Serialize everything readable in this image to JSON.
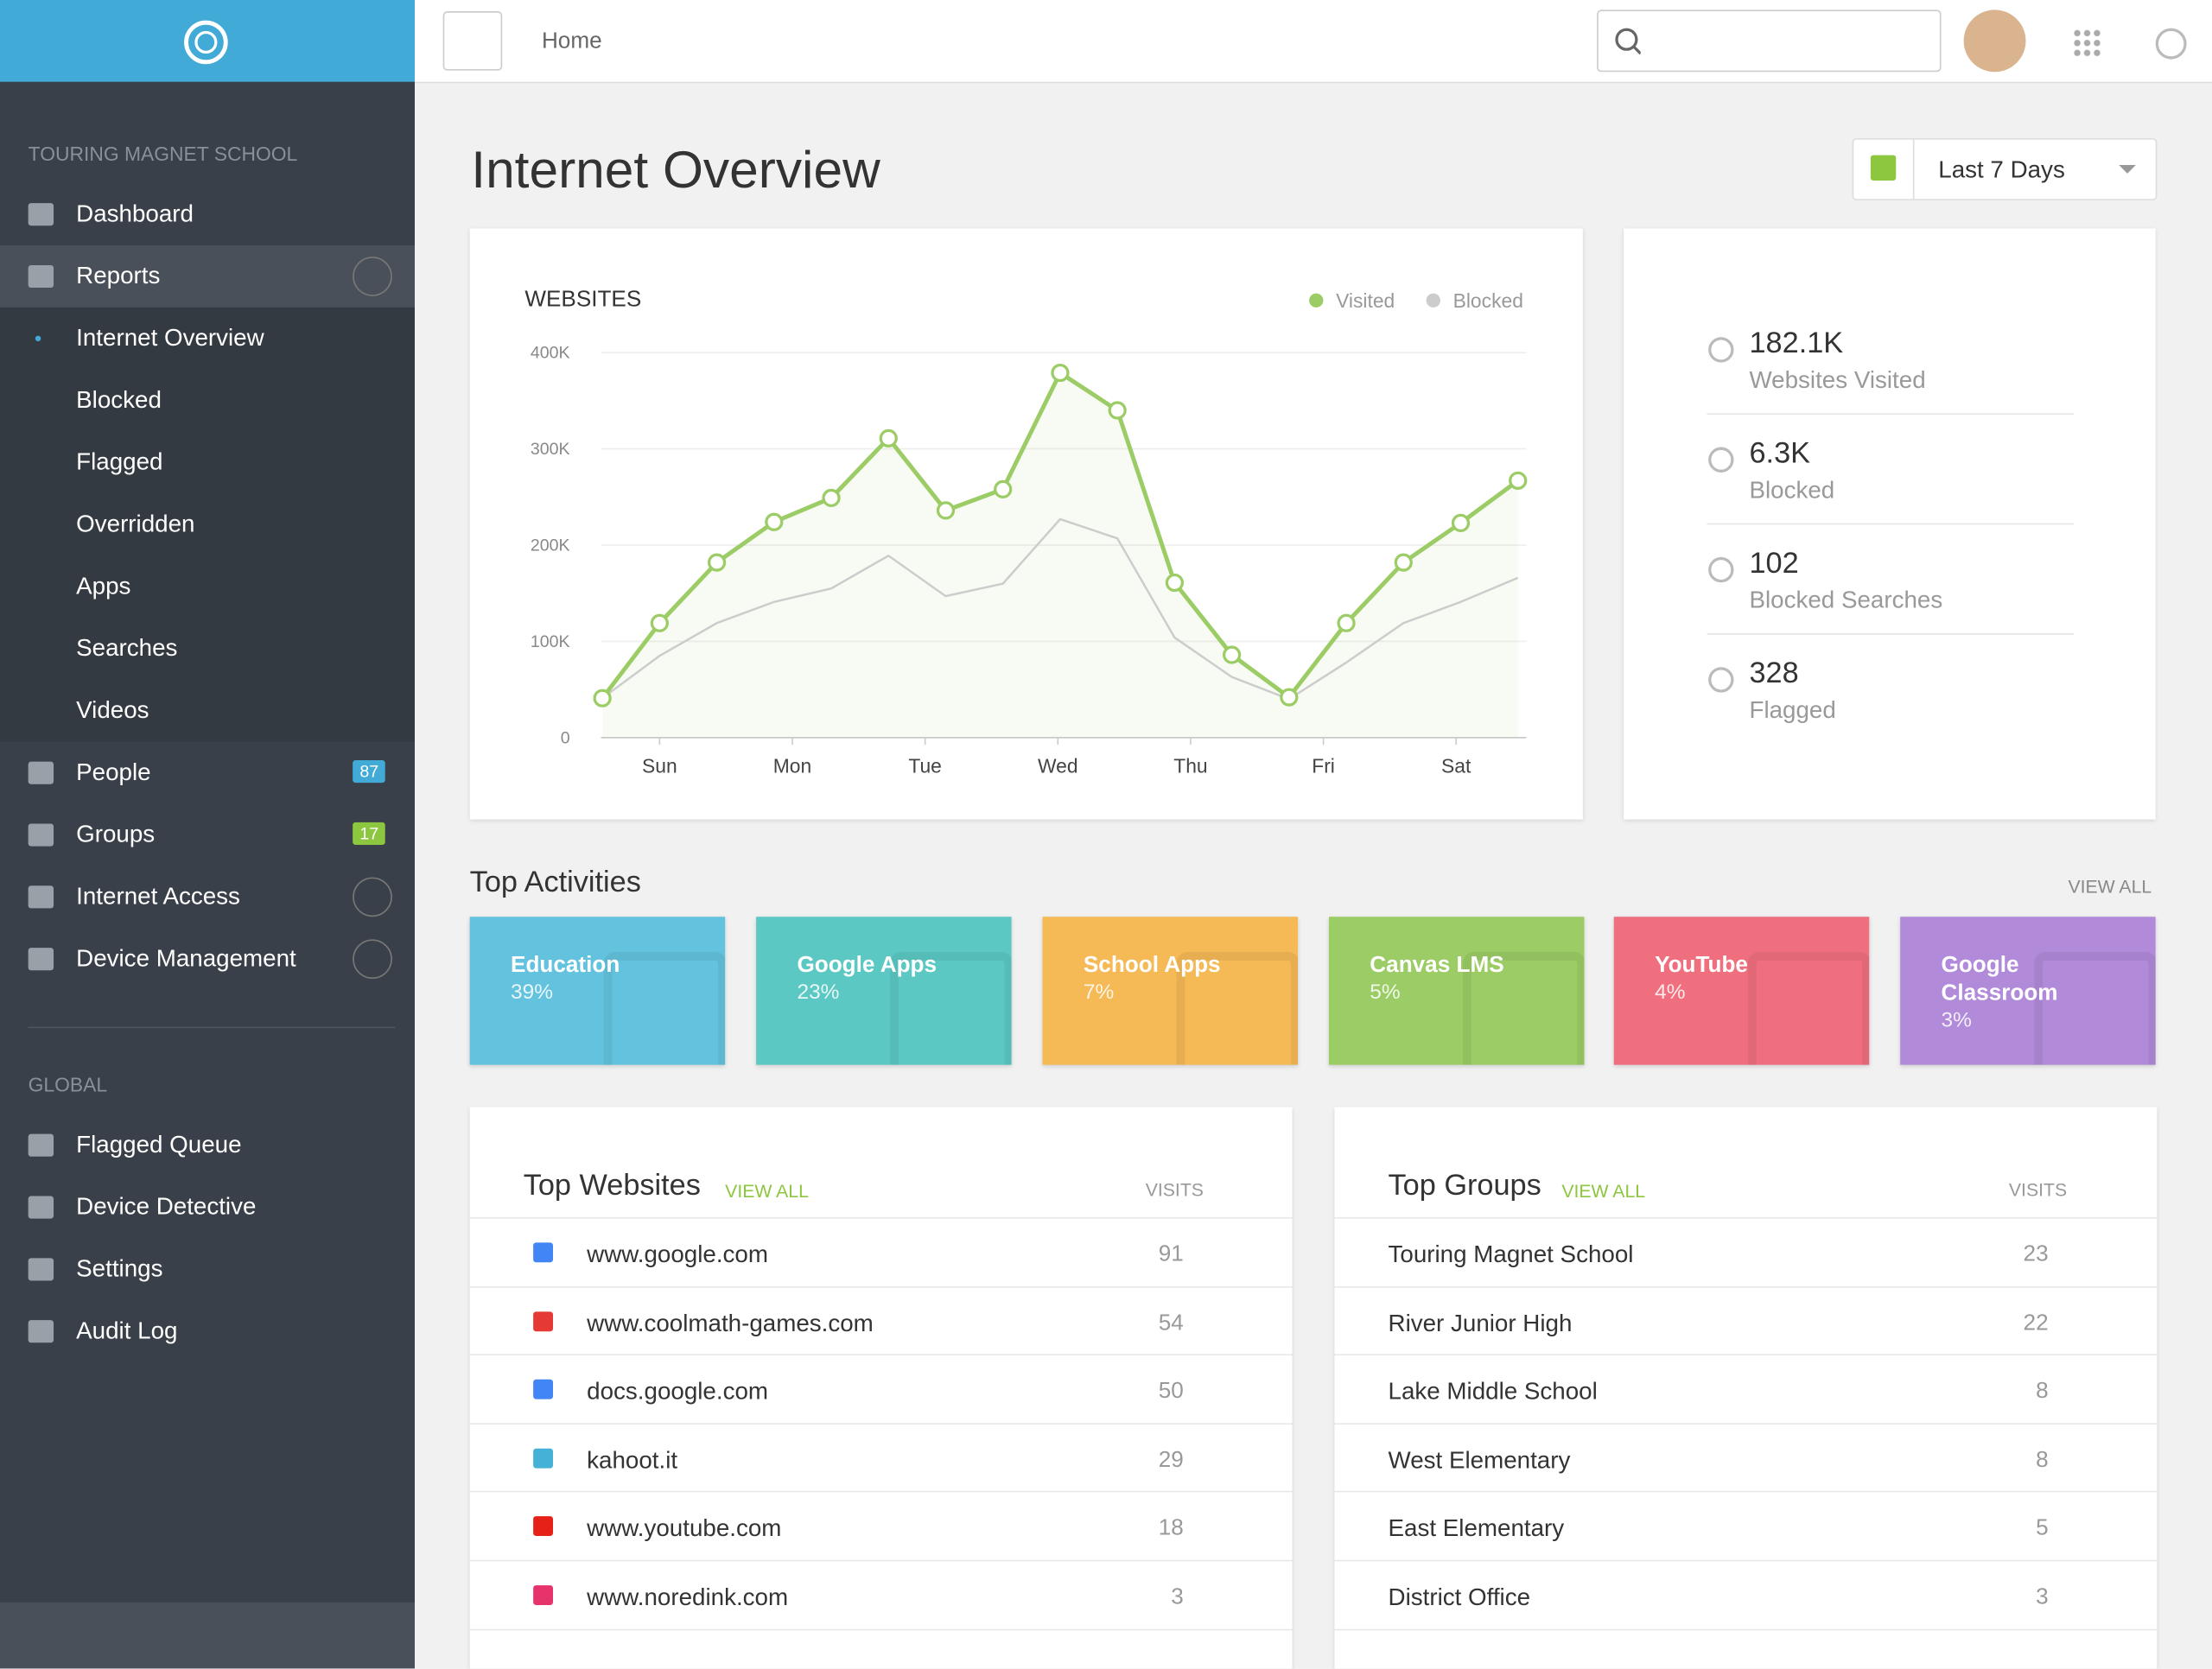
{
  "sidebar": {
    "org": "TOURING MAGNET SCHOOL",
    "items": [
      {
        "label": "Dashboard"
      },
      {
        "label": "Reports",
        "sub": [
          "Internet Overview",
          "Blocked",
          "Flagged",
          "Overridden",
          "Apps",
          "Searches",
          "Videos"
        ]
      },
      {
        "label": "People",
        "badge": "87"
      },
      {
        "label": "Groups",
        "badge": "17"
      },
      {
        "label": "Internet Access"
      },
      {
        "label": "Device Management"
      }
    ],
    "global_label": "GLOBAL",
    "global_items": [
      "Flagged Queue",
      "Device Detective",
      "Settings",
      "Audit Log"
    ]
  },
  "topbar": {
    "breadcrumb": "Home"
  },
  "page": {
    "title": "Internet Overview",
    "range": "Last 7 Days"
  },
  "chart_data": {
    "type": "line",
    "title": "WEBSITES",
    "x": [
      0,
      1,
      2,
      3,
      4,
      5,
      6,
      7,
      8,
      9,
      10,
      11,
      12,
      13,
      14,
      15,
      16
    ],
    "xlim": [
      0,
      16
    ],
    "xticks": [
      {
        "value": 1,
        "label": "Sun"
      },
      {
        "value": 3.32,
        "label": "Mon"
      },
      {
        "value": 5.64,
        "label": "Tue"
      },
      {
        "value": 7.96,
        "label": "Wed"
      },
      {
        "value": 10.28,
        "label": "Thu"
      },
      {
        "value": 12.6,
        "label": "Fri"
      },
      {
        "value": 14.92,
        "label": "Sat"
      }
    ],
    "ylim": [
      0,
      400000
    ],
    "yticks": [
      0,
      {
        "value": 100000,
        "label": "100K"
      },
      {
        "value": 200000,
        "label": "200K"
      },
      {
        "value": 300000,
        "label": "300K"
      },
      {
        "value": 400000,
        "label": "400K"
      }
    ],
    "grid": true,
    "legend": "top-right",
    "series": [
      {
        "name": "Visited",
        "color": "#9ccc65",
        "values": [
          41000,
          119000,
          182000,
          224000,
          249000,
          311000,
          236000,
          258000,
          379000,
          340000,
          161000,
          86000,
          42000,
          119000,
          182000,
          223000,
          267000
        ]
      },
      {
        "name": "Blocked",
        "color": "#cccccc",
        "values": [
          41000,
          85000,
          119000,
          141000,
          155000,
          189000,
          147000,
          160000,
          227000,
          207000,
          104000,
          63000,
          40000,
          78000,
          119000,
          141000,
          166000
        ]
      }
    ]
  },
  "stats": [
    {
      "value": "182.1K",
      "label": "Websites Visited"
    },
    {
      "value": "6.3K",
      "label": "Blocked"
    },
    {
      "value": "102",
      "label": "Blocked Searches"
    },
    {
      "value": "328",
      "label": "Flagged"
    }
  ],
  "activities": {
    "title": "Top Activities",
    "view_all": "VIEW ALL",
    "items": [
      {
        "name": "Education",
        "share": "39%",
        "color": "#63c3df"
      },
      {
        "name": "Google Apps",
        "share": "23%",
        "color": "#5cc8c4"
      },
      {
        "name": "School Apps",
        "share": "7%",
        "color": "#f5b955"
      },
      {
        "name": "Canvas LMS",
        "share": "5%",
        "color": "#9ccc65"
      },
      {
        "name": "YouTube",
        "share": "4%",
        "color": "#f06f7e"
      },
      {
        "name": "Google Classroom",
        "share": "3%",
        "color": "#b18ad9"
      }
    ]
  },
  "top_websites": {
    "title": "Top Websites",
    "view_all": "VIEW ALL",
    "column": "VISITS",
    "rows": [
      [
        "www.google.com",
        "91"
      ],
      [
        "www.coolmath-games.com",
        "54"
      ],
      [
        "docs.google.com",
        "50"
      ],
      [
        "kahoot.it",
        "29"
      ],
      [
        "www.youtube.com",
        "18"
      ],
      [
        "www.noredink.com",
        "3"
      ]
    ]
  },
  "top_groups": {
    "title": "Top Groups",
    "view_all": "VIEW ALL",
    "column": "VISITS",
    "rows": [
      [
        "Touring Magnet School",
        "23"
      ],
      [
        "River Junior High",
        "22"
      ],
      [
        "Lake Middle School",
        "8"
      ],
      [
        "West Elementary",
        "8"
      ],
      [
        "East Elementary",
        "5"
      ],
      [
        "District Office",
        "3"
      ]
    ]
  }
}
